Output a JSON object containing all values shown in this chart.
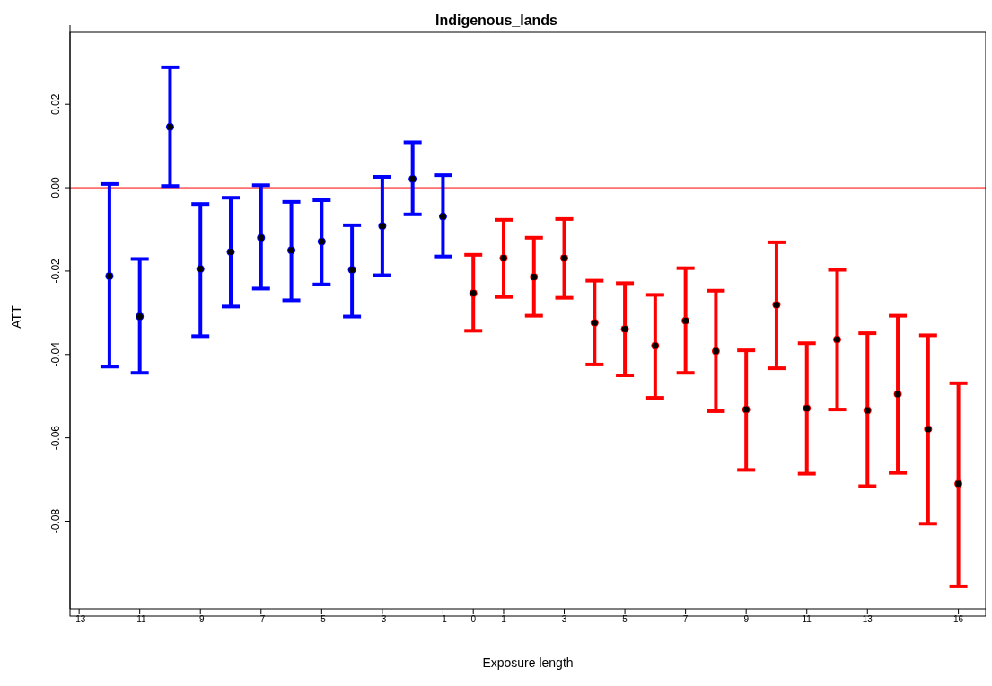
{
  "chart_data": {
    "type": "scatter",
    "title": "Indigenous_lands",
    "xlabel": "Exposure length",
    "ylabel": "ATT",
    "xlim": [
      -13.3,
      16.9
    ],
    "xticks": [
      -13,
      -11,
      -9,
      -7,
      -5,
      -3,
      -1,
      0,
      1,
      3,
      5,
      7,
      9,
      11,
      13,
      16
    ],
    "ylim": [
      -0.101,
      0.039
    ],
    "yticks": [
      0.02,
      {
        "value": 0,
        "label": "0.00"
      },
      -0.02,
      -0.04,
      -0.06,
      -0.08
    ],
    "grid": false,
    "legend": false,
    "marker": "circle",
    "ref_lines": [
      {
        "axis": "y",
        "value": 0,
        "color": "#ff0000"
      }
    ],
    "series": [
      {
        "color": "#0000ff",
        "x": [
          -12,
          -11,
          -10,
          -9,
          -8,
          -7,
          -6,
          -5,
          -4,
          -3,
          -2,
          -1
        ],
        "values": [
          -0.0212,
          -0.0309,
          0.0146,
          -0.0195,
          -0.0154,
          -0.012,
          -0.015,
          -0.0129,
          -0.0197,
          -0.0092,
          0.0021,
          -0.0069
        ],
        "errors": [
          [
            -0.0429,
            0.0009
          ],
          [
            -0.0444,
            -0.0171
          ],
          [
            0.0004,
            0.0289
          ],
          [
            -0.0356,
            -0.0039
          ],
          [
            -0.0285,
            -0.0024
          ],
          [
            -0.0242,
            0.0006
          ],
          [
            -0.027,
            -0.0034
          ],
          [
            -0.0232,
            -0.003
          ],
          [
            -0.0309,
            -0.009
          ],
          [
            -0.021,
            0.0026
          ],
          [
            -0.0064,
            0.0109
          ],
          [
            -0.0165,
            0.003
          ]
        ]
      },
      {
        "color": "#ff0000",
        "x": [
          0,
          1,
          2,
          3,
          4,
          5,
          6,
          7,
          8,
          9,
          10,
          11,
          12,
          13,
          14,
          15,
          16
        ],
        "values": [
          -0.0253,
          -0.0169,
          -0.0214,
          -0.0169,
          -0.0324,
          -0.0339,
          -0.0379,
          -0.0319,
          -0.0392,
          -0.0532,
          -0.0281,
          -0.0529,
          -0.0364,
          -0.0534,
          -0.0495,
          -0.0579,
          -0.071
        ],
        "errors": [
          [
            -0.0343,
            -0.0161
          ],
          [
            -0.0262,
            -0.0077
          ],
          [
            -0.0307,
            -0.012
          ],
          [
            -0.0264,
            -0.0075
          ],
          [
            -0.0424,
            -0.0223
          ],
          [
            -0.045,
            -0.0229
          ],
          [
            -0.0504,
            -0.0257
          ],
          [
            -0.0444,
            -0.0193
          ],
          [
            -0.0536,
            -0.0247
          ],
          [
            -0.0677,
            -0.039
          ],
          [
            -0.0433,
            -0.0131
          ],
          [
            -0.0686,
            -0.0373
          ],
          [
            -0.0532,
            -0.0197
          ],
          [
            -0.0716,
            -0.0349
          ],
          [
            -0.0684,
            -0.0307
          ],
          [
            -0.0806,
            -0.0354
          ],
          [
            -0.0956,
            -0.0469
          ]
        ]
      }
    ]
  }
}
